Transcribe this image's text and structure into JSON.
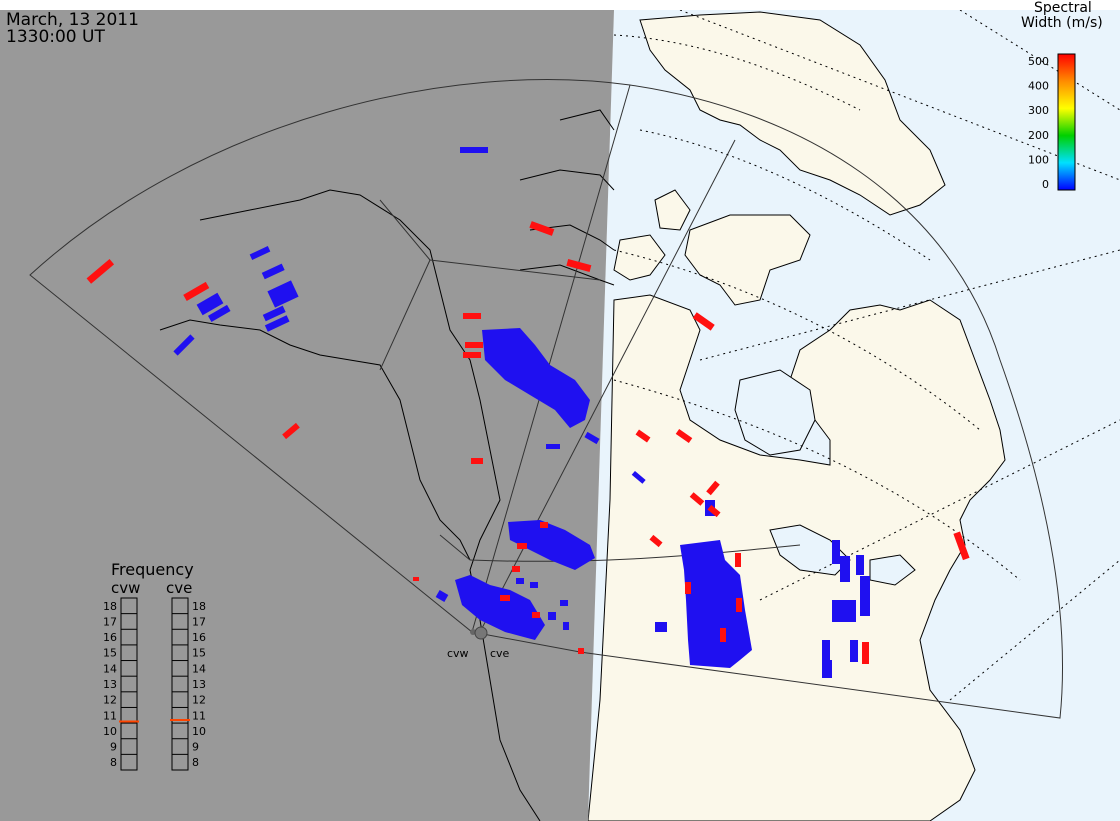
{
  "header": {
    "date": "March, 13 2011",
    "time": "1330:00 UT"
  },
  "colorbar": {
    "title_line1": "Spectral",
    "title_line2": "Width (m/s)",
    "ticks": [
      "500",
      "400",
      "300",
      "200",
      "100",
      "0"
    ],
    "range": [
      0,
      500
    ],
    "colors": [
      "#ff0000",
      "#ff8c00",
      "#ffff00",
      "#00d000",
      "#00e0e0",
      "#0000ff"
    ]
  },
  "frequency_panel": {
    "title": "Frequency",
    "radars": [
      {
        "code": "cvw",
        "selected_mhz": 10.6
      },
      {
        "code": "cve",
        "selected_mhz": 10.7
      }
    ],
    "ticks": [
      "18",
      "17",
      "16",
      "15",
      "14",
      "13",
      "12",
      "11",
      "10",
      "9",
      "8"
    ],
    "range": [
      8,
      18
    ],
    "marker_color": "#ff4500"
  },
  "radar_sites": [
    {
      "code": "cvw"
    },
    {
      "code": "cve"
    }
  ],
  "colors": {
    "night": "#999999",
    "day_land": "#fbf8ea",
    "day_water": "#e9f4fc",
    "low_width": "#1f10f0",
    "high_width": "#ff1010"
  }
}
